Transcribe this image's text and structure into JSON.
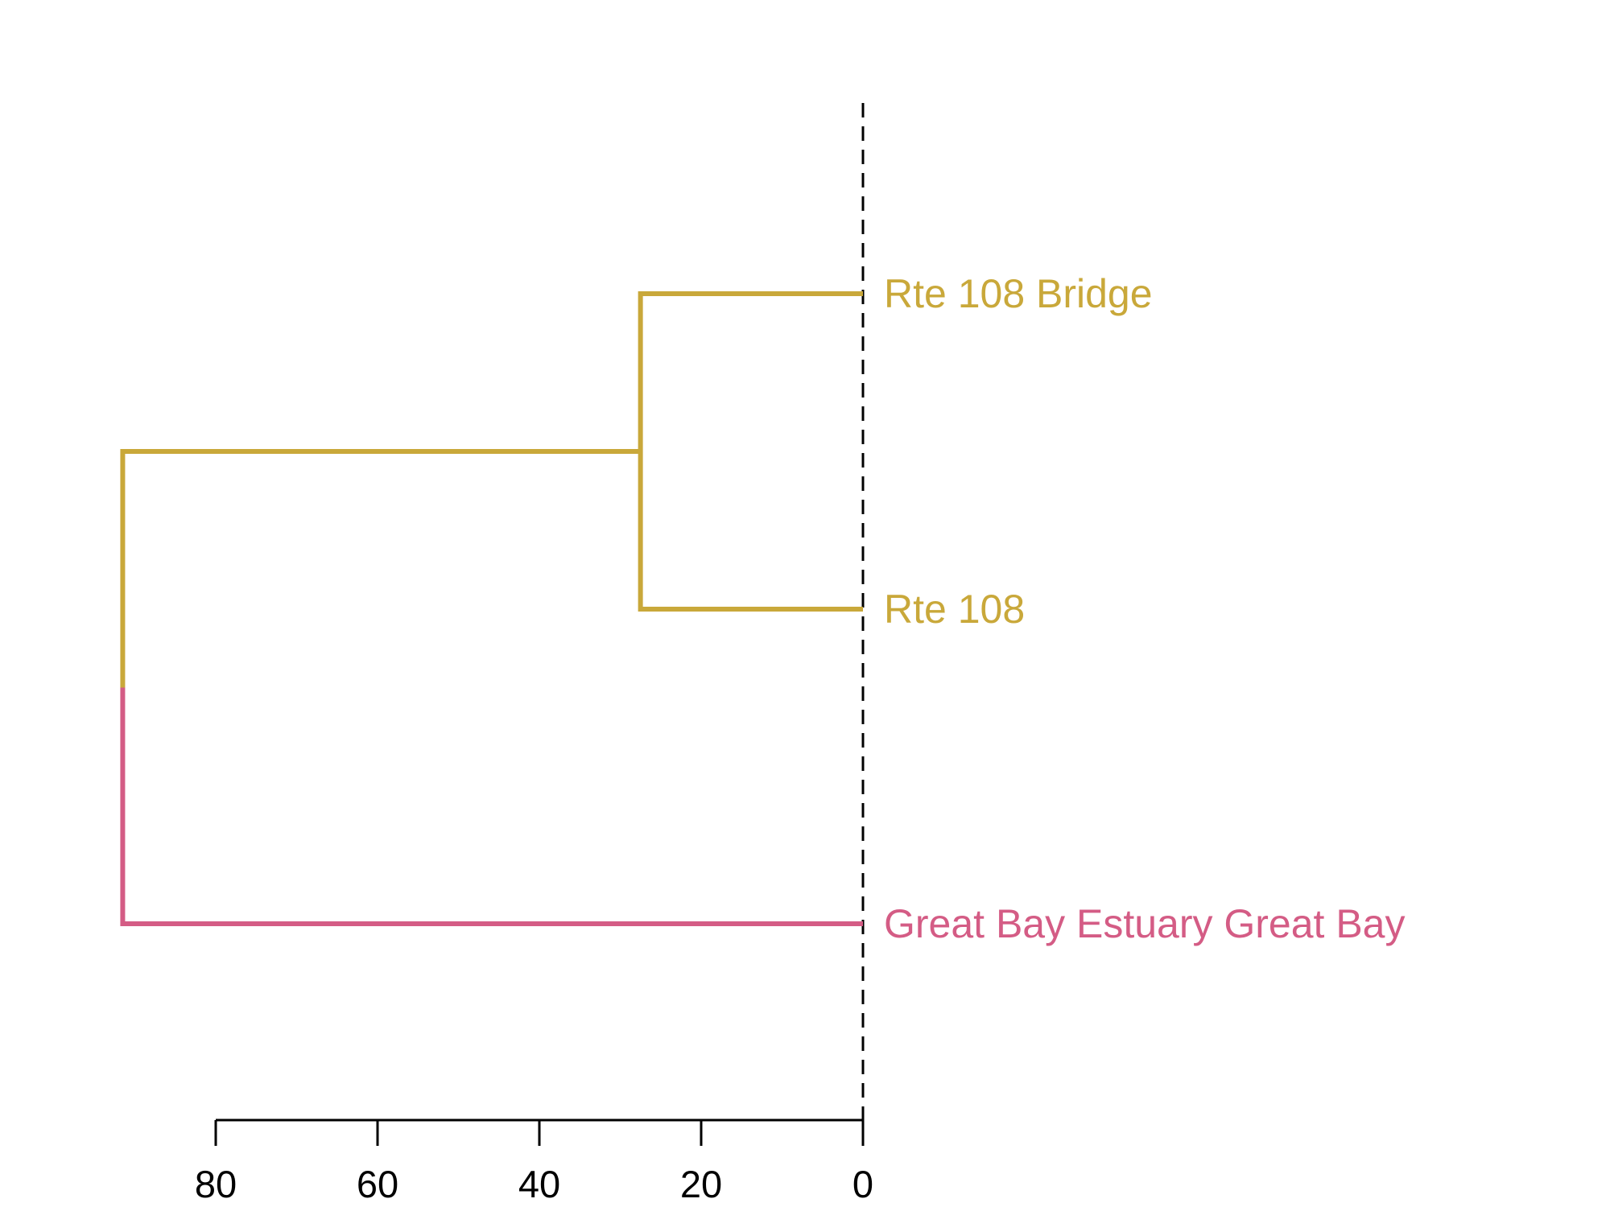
{
  "chart_data": {
    "type": "dendrogram",
    "orientation": "horizontal",
    "leaves": [
      {
        "label": "Rte 108 Bridge",
        "color": "#C9A83A"
      },
      {
        "label": "Rte 108",
        "color": "#C9A83A"
      },
      {
        "label": "Great Bay Estuary Great Bay",
        "color": "#D45C85"
      }
    ],
    "merges": [
      {
        "children": [
          "Rte 108 Bridge",
          "Rte 108"
        ],
        "height": 27.5,
        "color": "#C9A83A"
      },
      {
        "children": [
          0,
          "Great Bay Estuary Great Bay"
        ],
        "height": 91.5
      }
    ],
    "axis": {
      "ticks": [
        80,
        60,
        40,
        20,
        0
      ],
      "tick_labels": [
        "80",
        "60",
        "40",
        "20",
        "0"
      ],
      "range": [
        80,
        0
      ],
      "reversed": true
    },
    "cut_line": {
      "value": 0,
      "style": "dashed"
    },
    "line_color": "#000000"
  }
}
